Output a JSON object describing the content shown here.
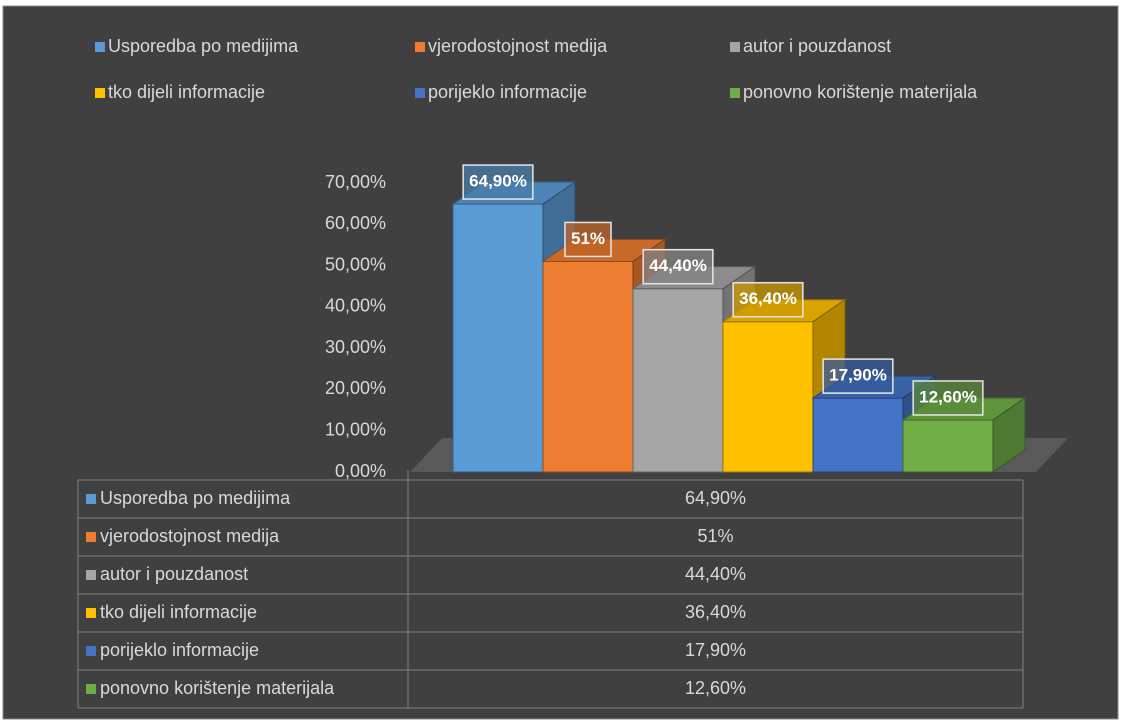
{
  "chart_data": {
    "type": "bar3d",
    "legend": "top",
    "data_table": true,
    "series": [
      {
        "name": "Usporedba po medijima",
        "color": "#5b9bd5",
        "values": [
          64.9
        ],
        "value_labels": [
          "64,90%"
        ]
      },
      {
        "name": "vjerodostojnost medija",
        "color": "#ed7d31",
        "values": [
          51
        ],
        "value_labels": [
          "51%"
        ]
      },
      {
        "name": "autor i pouzdanost",
        "color": "#a5a5a5",
        "values": [
          44.4
        ],
        "value_labels": [
          "44,40%"
        ]
      },
      {
        "name": "tko dijeli informacije",
        "color": "#ffc000",
        "values": [
          36.4
        ],
        "value_labels": [
          "36,40%"
        ]
      },
      {
        "name": "porijeklo informacije",
        "color": "#4472c4",
        "values": [
          17.9
        ],
        "value_labels": [
          "17,90%"
        ]
      },
      {
        "name": "ponovno korištenje materijala",
        "color": "#70ad47",
        "values": [
          12.6
        ],
        "value_labels": [
          "12,60%"
        ]
      }
    ],
    "ylim": [
      0,
      70
    ],
    "yticks": [
      {
        "value": 0,
        "label": "0,00%"
      },
      {
        "value": 10,
        "label": "10,00%"
      },
      {
        "value": 20,
        "label": "20,00%"
      },
      {
        "value": 30,
        "label": "30,00%"
      },
      {
        "value": 40,
        "label": "40,00%"
      },
      {
        "value": 50,
        "label": "50,00%"
      },
      {
        "value": 60,
        "label": "60,00%"
      },
      {
        "value": 70,
        "label": "70,00%"
      }
    ]
  }
}
